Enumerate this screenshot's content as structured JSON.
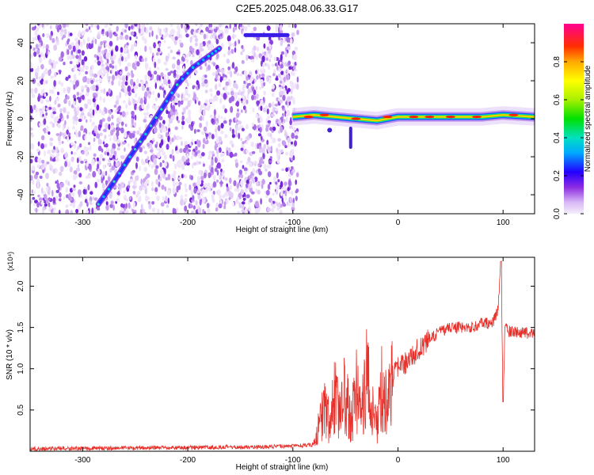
{
  "title": "C2E5.2025.048.06.33.G17",
  "chart_data": [
    {
      "type": "heatmap",
      "xlabel": "Height of straight line (km)",
      "ylabel": "Frequency (Hz)",
      "xlim": [
        -350,
        130
      ],
      "ylim": [
        -50,
        50
      ],
      "xticks": [
        -300,
        -200,
        -100,
        0,
        100
      ],
      "yticks": [
        -40,
        -20,
        0,
        20,
        40
      ],
      "colorbar": {
        "label": "Normalized spectral amplitude",
        "range": [
          0,
          1
        ],
        "ticks": [
          0.0,
          0.2,
          0.4,
          0.6,
          0.8
        ],
        "tick_labels": [
          "0.0",
          "0.2",
          "0.4",
          "0.6",
          "0.8"
        ]
      },
      "features": {
        "noise_region_x": [
          -350,
          -95
        ],
        "diagonal_ridge": {
          "x": [
            -285,
            -270,
            -255,
            -240,
            -225,
            -210,
            -195,
            -180,
            -170
          ],
          "y": [
            -45,
            -33,
            -20,
            -8,
            5,
            18,
            27,
            33,
            37
          ]
        },
        "top_streak": {
          "x": [
            -145,
            -105
          ],
          "y": [
            44,
            44
          ]
        },
        "carrier_line": {
          "x": [
            -100,
            -80,
            -60,
            -40,
            -20,
            0,
            20,
            40,
            60,
            80,
            100,
            130
          ],
          "y": [
            1,
            2,
            1,
            0,
            -1,
            1,
            1,
            1,
            1,
            1,
            2,
            1
          ],
          "peak_amplitude": 0.9
        },
        "dip": {
          "x": [
            -45,
            -45
          ],
          "y": [
            -5,
            -15
          ]
        }
      }
    },
    {
      "type": "line",
      "xlabel": "Height of straight line (km)",
      "ylabel": "SNR (10 * v/v)",
      "y_multiplier": "(x10⁴)",
      "xlim": [
        -350,
        130
      ],
      "ylim": [
        0,
        23500
      ],
      "xticks": [
        -300,
        -200,
        -100,
        0,
        100
      ],
      "yticks": [
        5000,
        10000,
        15000,
        20000
      ],
      "ytick_labels": [
        "0.5",
        "1.0",
        "1.5",
        "2.0"
      ],
      "color": "#e8302a",
      "series": [
        {
          "x": [
            -350,
            -300,
            -250,
            -200,
            -150,
            -100,
            -80,
            -75,
            -70,
            -65,
            -60,
            -55,
            -50,
            -45,
            -40,
            -35,
            -30,
            -25,
            -20,
            -15,
            -10,
            -5,
            0,
            5,
            10,
            20,
            30,
            40,
            50,
            60,
            70,
            80,
            90,
            95,
            98,
            100,
            102,
            105,
            110,
            120,
            130
          ],
          "y": [
            300,
            350,
            400,
            450,
            500,
            600,
            800,
            3000,
            5500,
            3500,
            6500,
            4000,
            7500,
            3000,
            8000,
            4000,
            9500,
            5000,
            3000,
            8000,
            6000,
            9000,
            10000,
            10500,
            11000,
            12500,
            13500,
            14500,
            15000,
            15000,
            15000,
            15500,
            15500,
            17000,
            23000,
            6000,
            16000,
            14500,
            14500,
            14300,
            14300
          ]
        }
      ]
    }
  ]
}
